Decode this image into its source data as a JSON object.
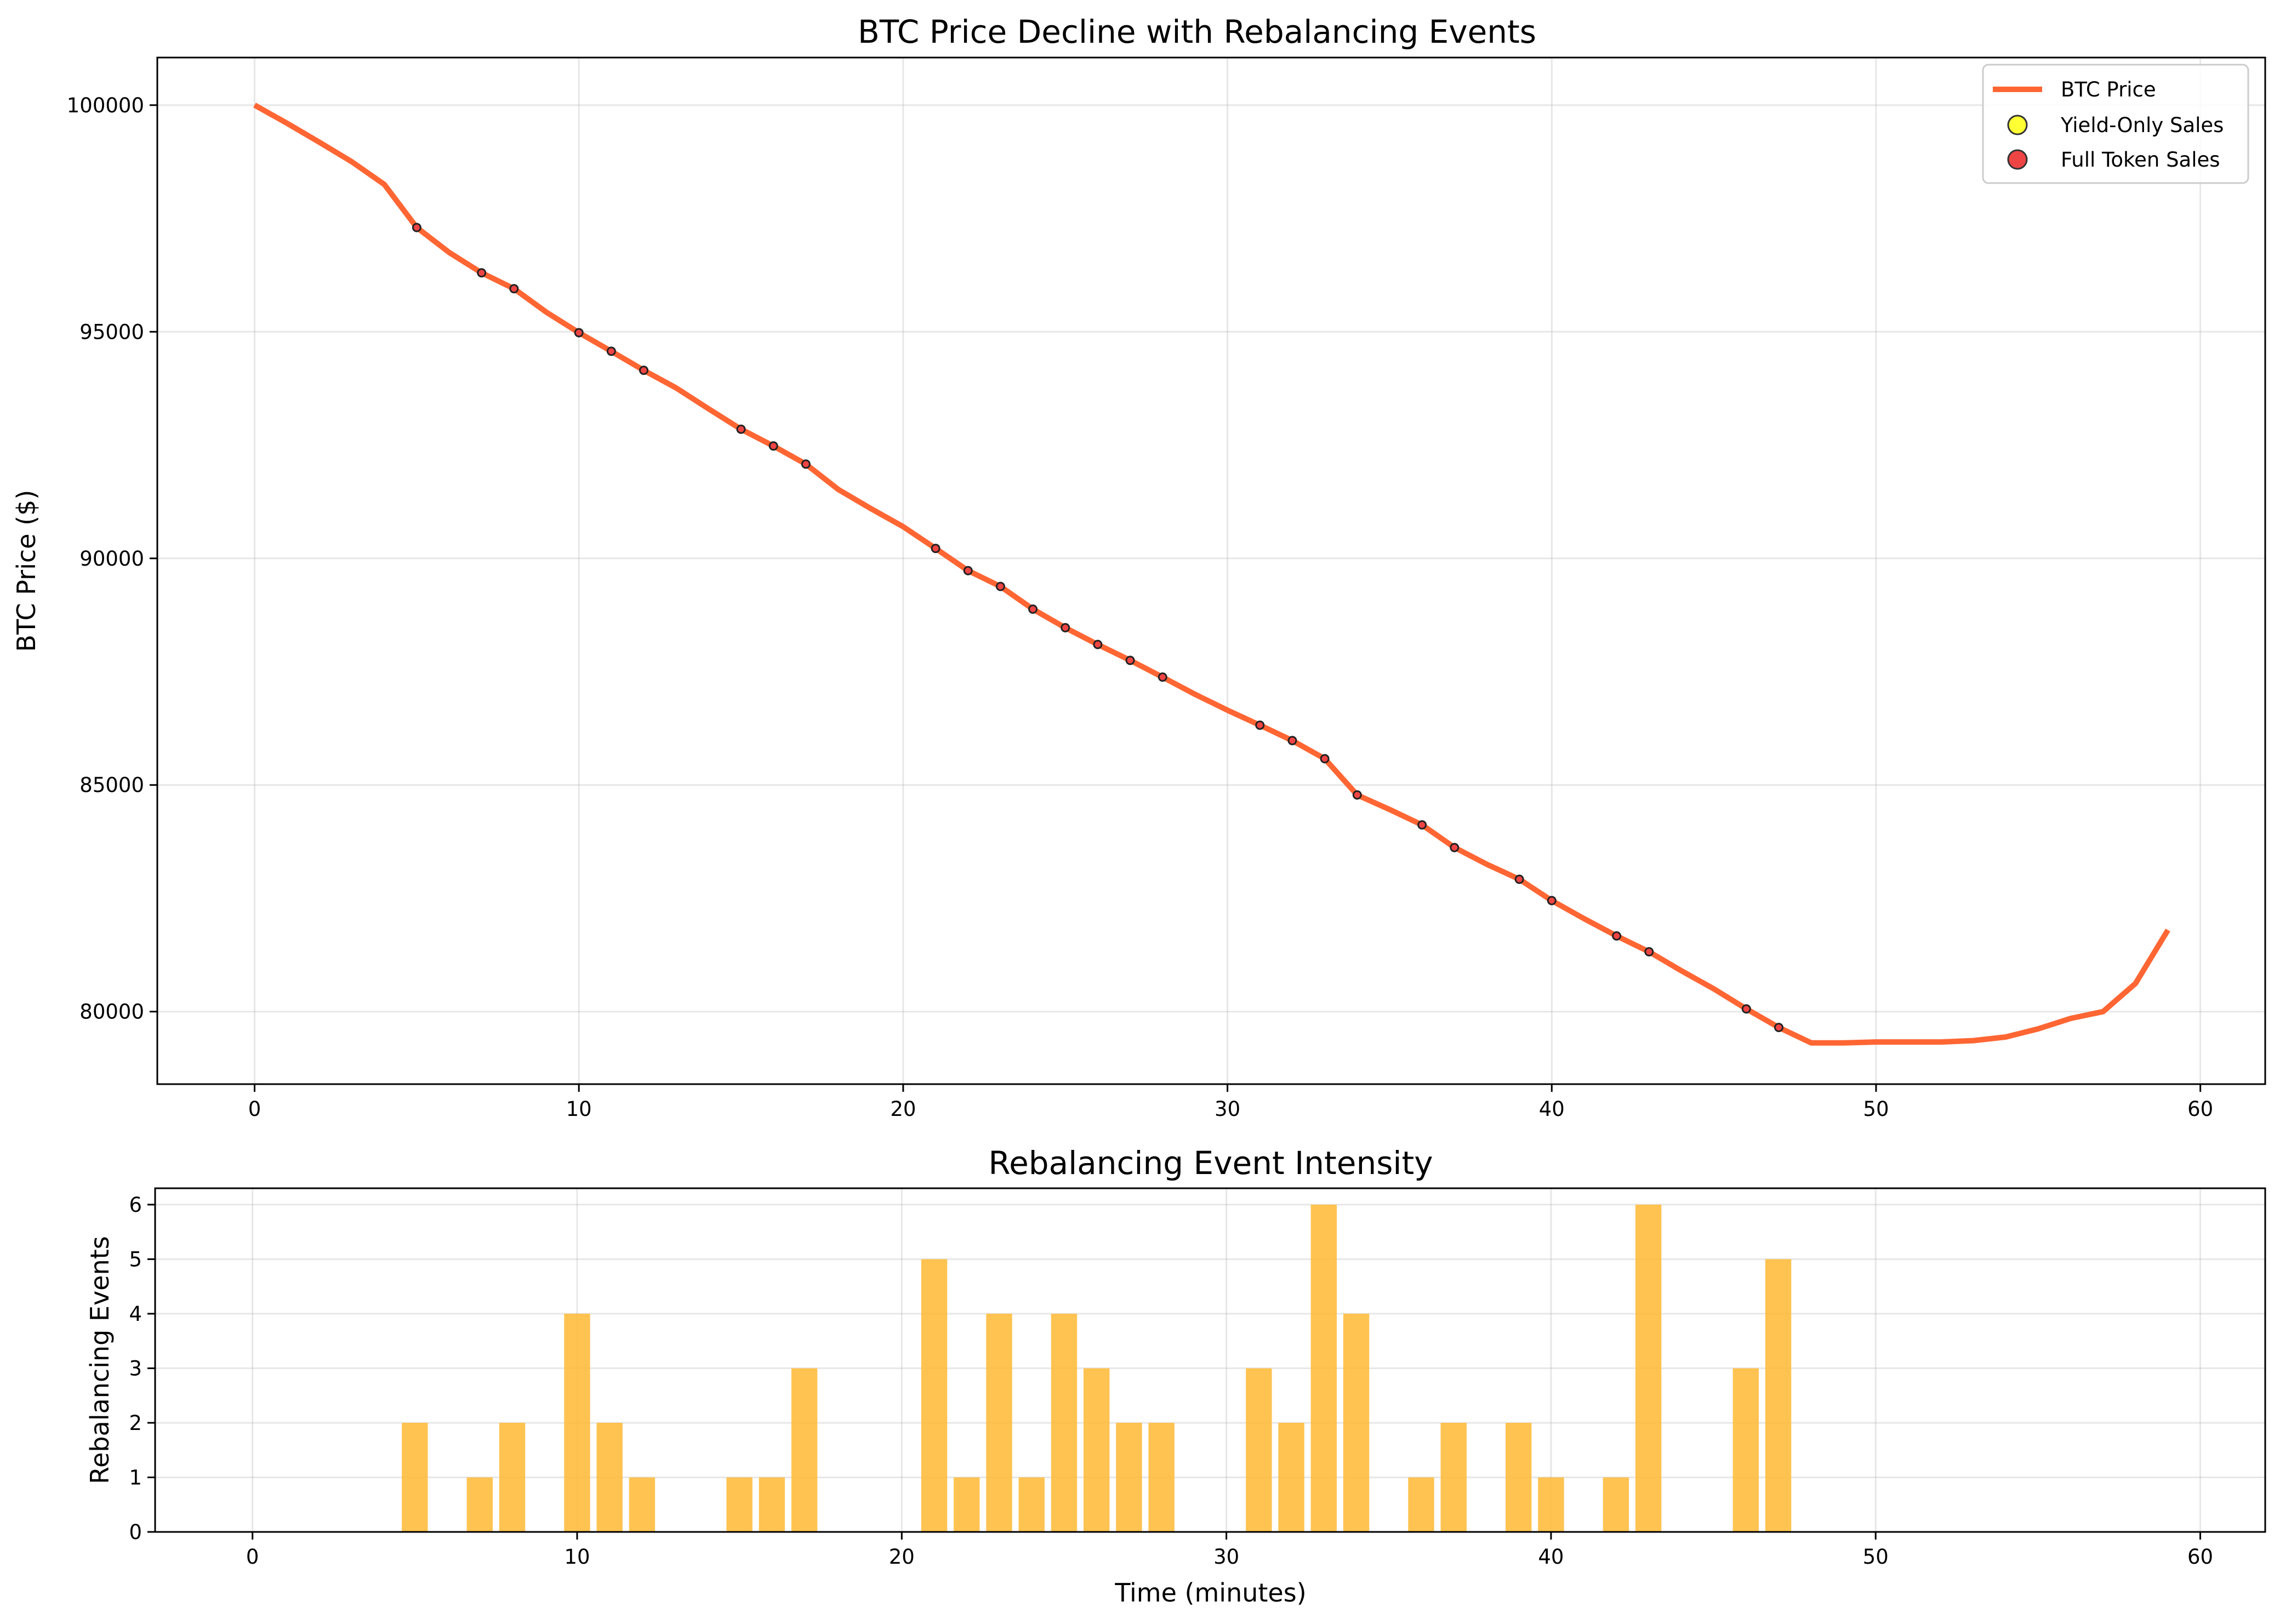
{
  "chart_data": [
    {
      "type": "line",
      "title": "BTC Price Decline with Rebalancing Events",
      "xlabel": "",
      "ylabel": "BTC Price ($)",
      "xlim": [
        -3,
        62
      ],
      "ylim": [
        78400,
        101050
      ],
      "xticks": [
        0,
        10,
        20,
        30,
        40,
        50,
        60
      ],
      "yticks": [
        80000,
        85000,
        90000,
        95000,
        100000
      ],
      "grid": true,
      "legend_position": "top-right",
      "colors": {
        "price": "#ff6633",
        "yield_only": "#ffff33",
        "full_token": "#ee4444"
      },
      "legend": [
        "BTC Price",
        "Yield-Only Sales",
        "Full Token Sales"
      ],
      "series": [
        {
          "name": "BTC Price",
          "x": [
            0,
            1,
            2,
            3,
            4,
            5,
            6,
            7,
            8,
            9,
            10,
            11,
            12,
            13,
            14,
            15,
            16,
            17,
            18,
            19,
            20,
            21,
            22,
            23,
            24,
            25,
            26,
            27,
            28,
            29,
            30,
            31,
            32,
            33,
            34,
            35,
            36,
            37,
            38,
            39,
            40,
            41,
            42,
            43,
            44,
            45,
            46,
            47,
            48,
            49,
            50,
            51,
            52,
            53,
            54,
            55,
            56,
            57,
            58,
            59
          ],
          "y": [
            100000,
            99600,
            99180,
            98750,
            98250,
            97300,
            96750,
            96300,
            95950,
            95430,
            94980,
            94570,
            94150,
            93760,
            93300,
            92850,
            92480,
            92080,
            91520,
            91100,
            90700,
            90220,
            89730,
            89380,
            88880,
            88470,
            88100,
            87750,
            87380,
            87000,
            86650,
            86320,
            85980,
            85580,
            84780,
            84460,
            84120,
            83620,
            83250,
            82920,
            82450,
            82050,
            81670,
            81320,
            80900,
            80500,
            80060,
            79650,
            79310,
            79310,
            79330,
            79330,
            79330,
            79360,
            79440,
            79620,
            79850,
            80000,
            80620,
            81800
          ]
        }
      ],
      "markers": {
        "x": [
          5,
          7,
          8,
          10,
          11,
          12,
          15,
          16,
          17,
          21,
          22,
          23,
          24,
          25,
          26,
          27,
          28,
          31,
          32,
          33,
          34,
          36,
          37,
          39,
          40,
          42,
          43,
          46,
          47
        ],
        "y": [
          97300,
          96300,
          95950,
          94980,
          94570,
          94150,
          92850,
          92480,
          92080,
          90220,
          89730,
          89380,
          88880,
          88470,
          88100,
          87750,
          87380,
          86320,
          85980,
          85580,
          84780,
          84120,
          83620,
          82920,
          82450,
          81670,
          81320,
          80060,
          79650
        ]
      }
    },
    {
      "type": "bar",
      "title": "Rebalancing Event Intensity",
      "xlabel": "Time (minutes)",
      "ylabel": "Rebalancing Events",
      "xlim": [
        -3,
        62
      ],
      "ylim": [
        0,
        6.3
      ],
      "xticks": [
        0,
        10,
        20,
        30,
        40,
        50,
        60
      ],
      "yticks": [
        0,
        1,
        2,
        3,
        4,
        5,
        6
      ],
      "grid": true,
      "bar_color": "#ffb833",
      "x": [
        5,
        7,
        8,
        10,
        11,
        12,
        15,
        16,
        17,
        21,
        22,
        23,
        24,
        25,
        26,
        27,
        28,
        31,
        32,
        33,
        34,
        36,
        37,
        39,
        40,
        42,
        43,
        46,
        47
      ],
      "values": [
        2,
        1,
        2,
        4,
        2,
        1,
        1,
        1,
        3,
        5,
        1,
        4,
        1,
        4,
        3,
        2,
        2,
        3,
        2,
        6,
        4,
        1,
        2,
        2,
        1,
        1,
        6,
        3,
        5
      ]
    }
  ]
}
